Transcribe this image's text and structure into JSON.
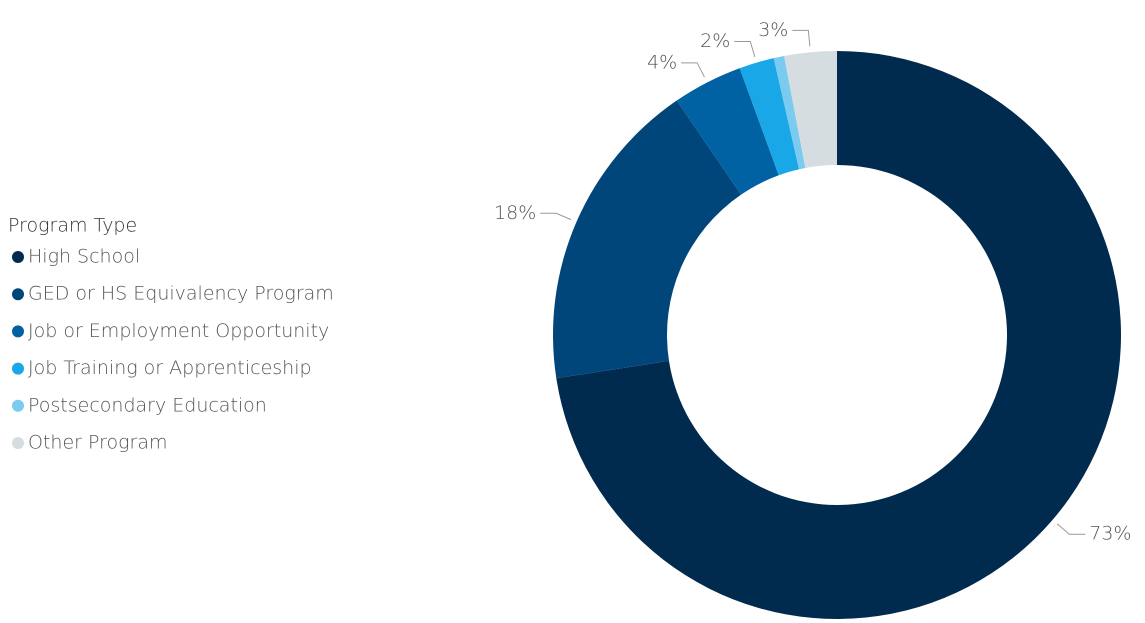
{
  "chart_data": {
    "type": "donut",
    "legend_title": "Program Type",
    "categories": [
      "High School",
      "GED or HS Equivalency Program",
      "Job or Employment Opportunity",
      "Job Training or Apprenticeship",
      "Postsecondary Education",
      "Other Program"
    ],
    "values": [
      73,
      18,
      4,
      2,
      0.6,
      3
    ],
    "value_labels": [
      "73%",
      "18%",
      "4%",
      "2%",
      null,
      "3%"
    ],
    "colors": [
      "#002a4e",
      "#00467a",
      "#0061a3",
      "#1aa7e8",
      "#7bcaf0",
      "#d5dde1"
    ],
    "legend": "left"
  }
}
